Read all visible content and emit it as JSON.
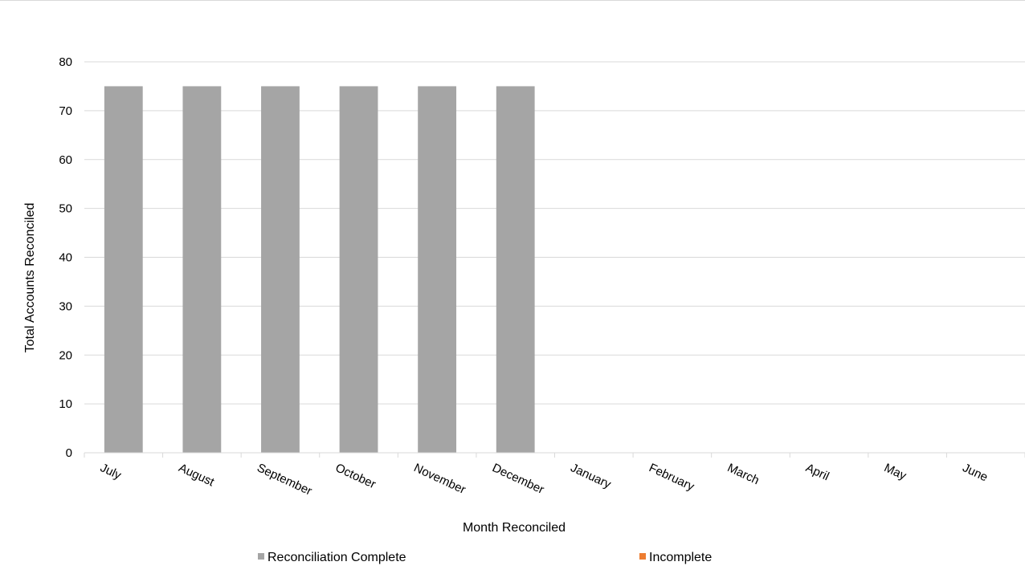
{
  "chart_data": {
    "type": "bar",
    "stacked": true,
    "categories": [
      "July",
      "August",
      "September",
      "October",
      "November",
      "December",
      "January",
      "February",
      "March",
      "April",
      "May",
      "June"
    ],
    "series": [
      {
        "name": "Reconciliation Complete",
        "color": "#a5a5a5",
        "values": [
          75,
          75,
          75,
          75,
          75,
          75,
          0,
          0,
          0,
          0,
          0,
          0
        ]
      },
      {
        "name": "Incomplete",
        "color": "#ed7d31",
        "values": [
          0,
          0,
          0,
          0,
          0,
          0,
          0,
          0,
          0,
          0,
          0,
          0
        ]
      }
    ],
    "xlabel": "Month Reconciled",
    "ylabel": "Total Accounts Reconciled",
    "ylim": [
      0,
      80
    ],
    "yticks": [
      0,
      10,
      20,
      30,
      40,
      50,
      60,
      70,
      80
    ],
    "grid": true,
    "legend_position": "bottom"
  }
}
